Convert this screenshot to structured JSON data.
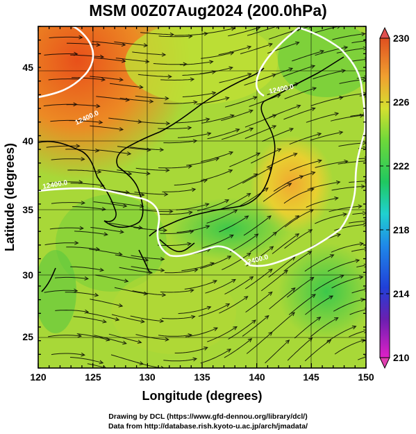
{
  "title": "MSM 00Z07Aug2024 (200.0hPa)",
  "x_axis": {
    "label": "Longitude (degrees)",
    "ticks": [
      "120",
      "125",
      "130",
      "135",
      "140",
      "145",
      "150"
    ]
  },
  "y_axis": {
    "label": "Latitude  (degrees)",
    "ticks": [
      "25",
      "30",
      "35",
      "40",
      "45"
    ]
  },
  "colorbar": {
    "ticks": [
      "230",
      "226",
      "222",
      "218",
      "214",
      "210"
    ],
    "min": 210,
    "max": 230
  },
  "contour_labels": [
    "12400.0",
    "12400.0",
    "12400.0",
    "12400.0"
  ],
  "credits": [
    "Drawing by DCL (https://www.gfd-dennou.org/library/dcl/)",
    "Data from http://database.rish.kyoto-u.ac.jp/arch/jmadata/"
  ],
  "colors": {
    "warm": "#e8601c",
    "mid": "#c8e035",
    "cool": "#36c858",
    "contour": "#ffffff",
    "coast": "#000000"
  }
}
